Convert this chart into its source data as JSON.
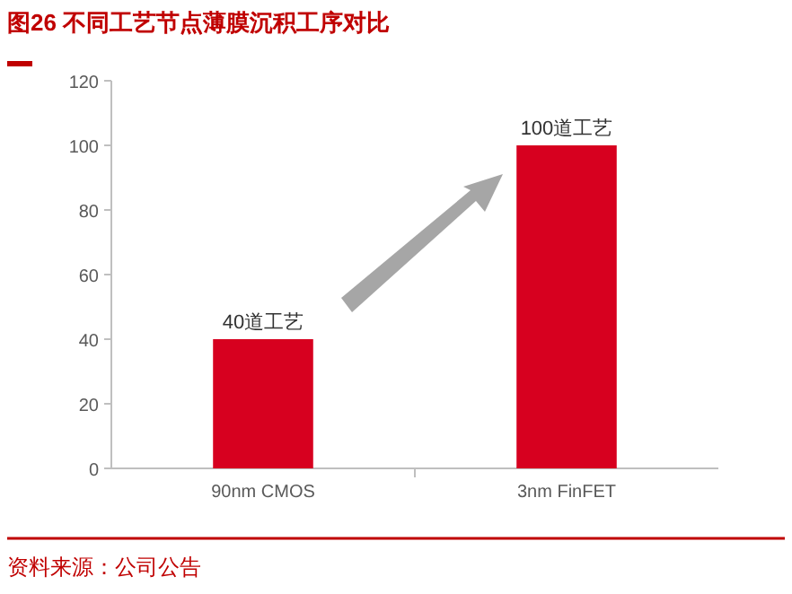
{
  "chart_data": {
    "type": "bar",
    "title": "图26  不同工艺节点薄膜沉积工序对比",
    "categories": [
      "90nm CMOS",
      "3nm FinFET"
    ],
    "values": [
      40,
      100
    ],
    "value_labels": [
      "40道工艺",
      "100道工艺"
    ],
    "color": "#d7001f",
    "ylim": [
      0,
      120
    ],
    "yticks": [
      0,
      20,
      40,
      60,
      80,
      100,
      120
    ],
    "grid": false,
    "annotations": [
      "资料来源：公司公告"
    ]
  }
}
